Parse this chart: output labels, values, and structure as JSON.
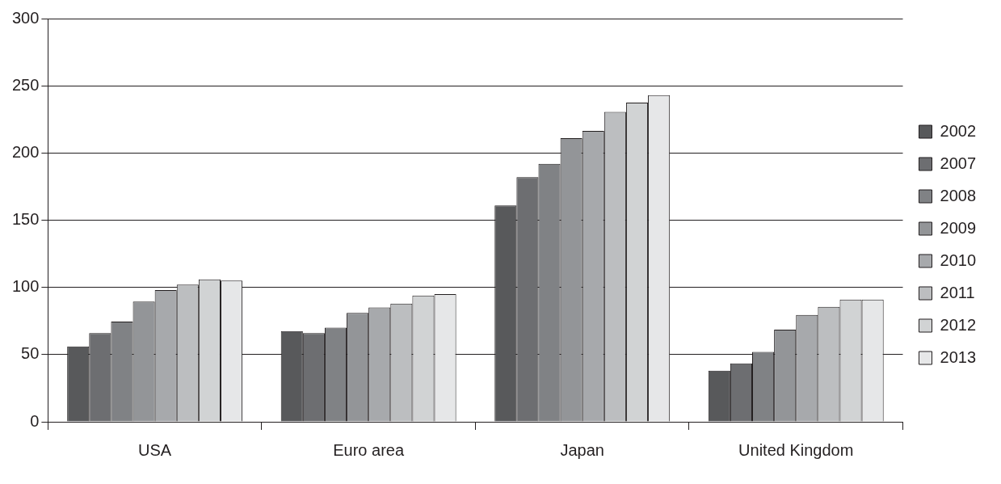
{
  "chart_data": {
    "type": "bar",
    "categories": [
      "USA",
      "Euro area",
      "Japan",
      "United Kingdom"
    ],
    "series": [
      {
        "name": "2002",
        "color": "#58595b",
        "values": [
          56,
          67.5,
          161,
          38
        ]
      },
      {
        "name": "2007",
        "color": "#6d6e71",
        "values": [
          66,
          66,
          182,
          43.5
        ]
      },
      {
        "name": "2008",
        "color": "#808285",
        "values": [
          74.5,
          70,
          192,
          52
        ]
      },
      {
        "name": "2009",
        "color": "#939598",
        "values": [
          89.5,
          81,
          211,
          68.5
        ]
      },
      {
        "name": "2010",
        "color": "#a7a9ac",
        "values": [
          98,
          85,
          216.5,
          79.5
        ]
      },
      {
        "name": "2011",
        "color": "#bcbec0",
        "values": [
          102,
          88,
          230.5,
          85.5
        ]
      },
      {
        "name": "2012",
        "color": "#d1d3d4",
        "values": [
          106,
          94,
          237.5,
          91
        ]
      },
      {
        "name": "2013",
        "color": "#e6e7e8",
        "values": [
          105,
          95,
          243,
          91
        ]
      }
    ],
    "ylim": [
      0,
      300
    ],
    "yticks": [
      0,
      50,
      100,
      150,
      200,
      250,
      300
    ],
    "grid": "y",
    "legend": "right"
  }
}
